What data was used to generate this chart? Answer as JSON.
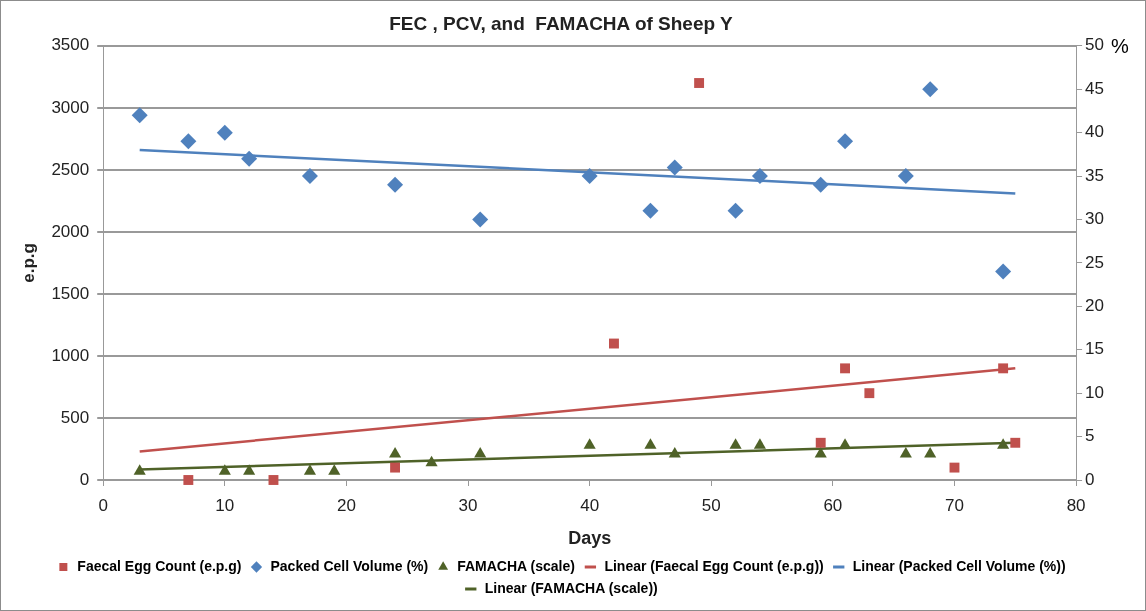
{
  "chart_data": {
    "type": "scatter",
    "title": "FEC , PCV, and  FAMACHA of Sheep Y",
    "xlabel": "Days",
    "ylabel": "e.p.g",
    "y2label": "%",
    "xlim": [
      0,
      80
    ],
    "xticks": [
      0,
      10,
      20,
      30,
      40,
      50,
      60,
      70,
      80
    ],
    "ylim": [
      0,
      3500
    ],
    "yticks": [
      0,
      500,
      1000,
      1500,
      2000,
      2500,
      3000,
      3500
    ],
    "y2lim": [
      0,
      50
    ],
    "y2ticks": [
      0,
      5,
      10,
      15,
      20,
      25,
      30,
      35,
      40,
      45,
      50
    ],
    "grid": "y",
    "legend": "bottom",
    "series": [
      {
        "name": "Faecal Egg Count (e.p.g)",
        "type": "scatter",
        "marker": "square",
        "color": "#c0504d",
        "x": [
          7,
          14,
          24,
          42,
          49,
          59,
          61,
          63,
          70,
          74,
          75
        ],
        "values": [
          0,
          0,
          100,
          1100,
          3200,
          300,
          900,
          700,
          100,
          900,
          300
        ]
      },
      {
        "name": "Packed Cell Volume (%)",
        "type": "scatter",
        "marker": "diamond",
        "axis": "y2",
        "color": "#4f81bd",
        "x": [
          3,
          7,
          10,
          12,
          17,
          24,
          31,
          40,
          45,
          47,
          52,
          54,
          59,
          61,
          66,
          68,
          74
        ],
        "values": [
          42,
          39,
          40,
          37,
          35,
          34,
          30,
          35,
          31,
          36,
          31,
          35,
          34,
          39,
          35,
          45,
          24
        ]
      },
      {
        "name": "FAMACHA (scale)",
        "type": "scatter",
        "marker": "triangle",
        "axis": "y2",
        "color": "#4f6228",
        "x": [
          3,
          10,
          12,
          17,
          19,
          24,
          27,
          31,
          40,
          45,
          47,
          52,
          54,
          59,
          61,
          66,
          68,
          74
        ],
        "values": [
          1,
          1,
          1,
          1,
          1,
          3,
          2,
          3,
          4,
          4,
          3,
          4,
          4,
          3,
          4,
          3,
          3,
          4
        ]
      },
      {
        "name": "Linear (Faecal Egg Count (e.p.g))",
        "type": "line",
        "marker": "none",
        "color": "#c0504d",
        "x": [
          3,
          75
        ],
        "values": [
          230,
          900
        ]
      },
      {
        "name": "Linear (Packed Cell Volume (%))",
        "type": "line",
        "marker": "none",
        "axis": "y2",
        "color": "#4f81bd",
        "x": [
          3,
          75
        ],
        "values": [
          38,
          33
        ]
      },
      {
        "name": "Linear (FAMACHA (scale))",
        "type": "line",
        "marker": "none",
        "axis": "y2",
        "color": "#4f6228",
        "x": [
          3,
          75
        ],
        "values": [
          1.2,
          4.3
        ]
      }
    ]
  }
}
